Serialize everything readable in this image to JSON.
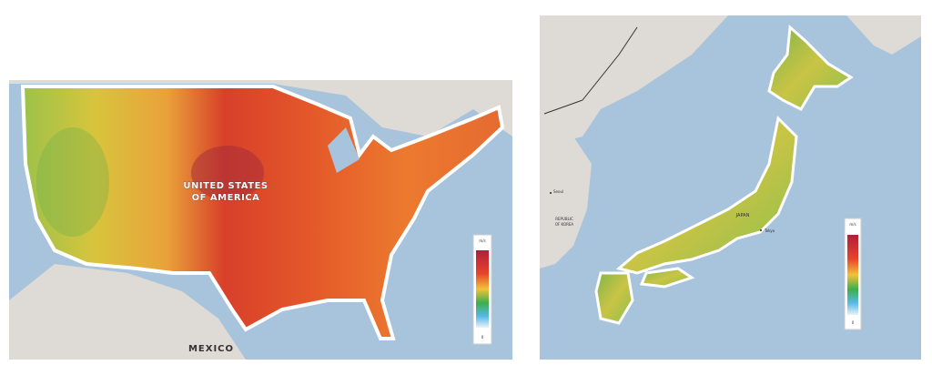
{
  "maps": [
    {
      "labels": [
        "UNITED STATES",
        "OF AMERICA",
        "MEXICO"
      ],
      "legend": {
        "top": "m/s",
        "bottom": "0"
      }
    },
    {
      "labels": [
        "JAPAN",
        "Tokyo",
        "REPUBLIC",
        "OF KOREA",
        "Seoul"
      ],
      "legend": {
        "top": "m/s",
        "bottom": "0"
      }
    }
  ]
}
